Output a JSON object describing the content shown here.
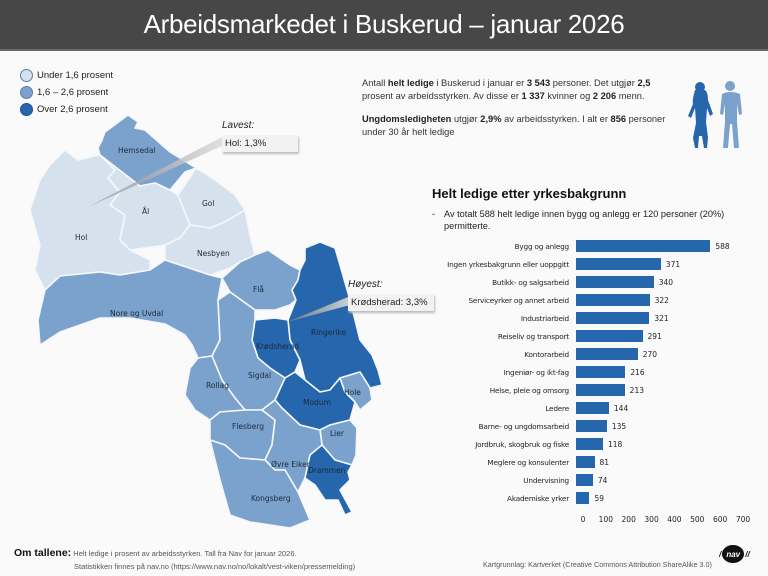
{
  "header": {
    "title": "Arbeidsmarkedet i Buskerud – januar 2026"
  },
  "legend": {
    "items": [
      {
        "label": "Under 1,6 prosent",
        "color": "#d6e1ee"
      },
      {
        "label": "1,6 – 2,6 prosent",
        "color": "#7aa2cc"
      },
      {
        "label": "Over 2,6 prosent",
        "color": "#2566ad"
      }
    ]
  },
  "map": {
    "municipalities": [
      {
        "name": "Hemsedal",
        "class": "mid"
      },
      {
        "name": "Hol",
        "class": "low"
      },
      {
        "name": "Ål",
        "class": "low"
      },
      {
        "name": "Gol",
        "class": "low"
      },
      {
        "name": "Nesbyen",
        "class": "low"
      },
      {
        "name": "Flå",
        "class": "mid"
      },
      {
        "name": "Nore og Uvdal",
        "class": "mid"
      },
      {
        "name": "Ringerike",
        "class": "high"
      },
      {
        "name": "Krødsherad",
        "class": "high"
      },
      {
        "name": "Sigdal",
        "class": "mid"
      },
      {
        "name": "Rollag",
        "class": "mid"
      },
      {
        "name": "Hole",
        "class": "mid"
      },
      {
        "name": "Modum",
        "class": "high"
      },
      {
        "name": "Flesberg",
        "class": "mid"
      },
      {
        "name": "Lier",
        "class": "mid"
      },
      {
        "name": "Øvre Eiker",
        "class": "mid"
      },
      {
        "name": "Drammen",
        "class": "high"
      },
      {
        "name": "Kongsberg",
        "class": "mid"
      }
    ],
    "lowest": {
      "title": "Lavest:",
      "value": "Hol: 1,3%"
    },
    "highest": {
      "title": "Høyest:",
      "value": "Krødsherad: 3,3%"
    }
  },
  "summary": {
    "p1": {
      "t1": "Antall ",
      "b1": "helt ledige",
      "t2": " i Buskerud i januar er ",
      "b2": "3 543",
      "t3": " personer. Det utgjør ",
      "b3": "2,5",
      "t4": " prosent av arbeidsstyrken. Av disse er ",
      "b4": "1 337",
      "t5": " kvinner og ",
      "b5": "2 206",
      "t6": " menn."
    },
    "p2": {
      "b1": "Ungdomsledigheten",
      "t1": " utgjør ",
      "b2": "2,9%",
      "t2": " av arbeidsstyrken. I alt er ",
      "b3": "856",
      "t3": " personer under 30 år helt ledige"
    }
  },
  "chart": {
    "title": "Helt ledige etter yrkesbakgrunn",
    "note_dash": "-",
    "note": "Av totalt 588 helt ledige innen bygg og anlegg er 120 personer (20%) permitterte."
  },
  "chart_data": {
    "type": "bar",
    "orientation": "horizontal",
    "title": "Helt ledige etter yrkesbakgrunn",
    "categories": [
      "Bygg og anlegg",
      "Ingen yrkesbakgrunn eller uoppgitt",
      "Butikk- og salgsarbeid",
      "Serviceyrker og annet arbeid",
      "Industriarbeid",
      "Reiseliv og transport",
      "Kontorarbeid",
      "Ingeniør- og ikt-fag",
      "Helse, pleie og omsorg",
      "Ledere",
      "Barne- og ungdomsarbeid",
      "Jordbruk, skogbruk og fiske",
      "Meglere og konsulenter",
      "Undervisning",
      "Akademiske yrker"
    ],
    "values": [
      588,
      371,
      340,
      322,
      321,
      291,
      270,
      216,
      213,
      144,
      135,
      118,
      81,
      74,
      59
    ],
    "xticks": [
      "0",
      "100",
      "200",
      "300",
      "400",
      "500",
      "600",
      "700"
    ],
    "xlim": [
      0,
      700
    ],
    "color": "#2566ad",
    "grid": false
  },
  "footer": {
    "om_label": "Om tallene:",
    "line1": " Helt ledige i prosent av arbeidsstyrken. Tall fra Nav for januar 2026.",
    "line2": "Statistikken finnes på nav.no (https://www.nav.no/no/lokalt/vest-viken/pressemelding)",
    "credit": "Kartgrunnlag: Kartverket (Creative Commons Attribution ShareAlike 3.0)",
    "logo_text": "nav"
  }
}
